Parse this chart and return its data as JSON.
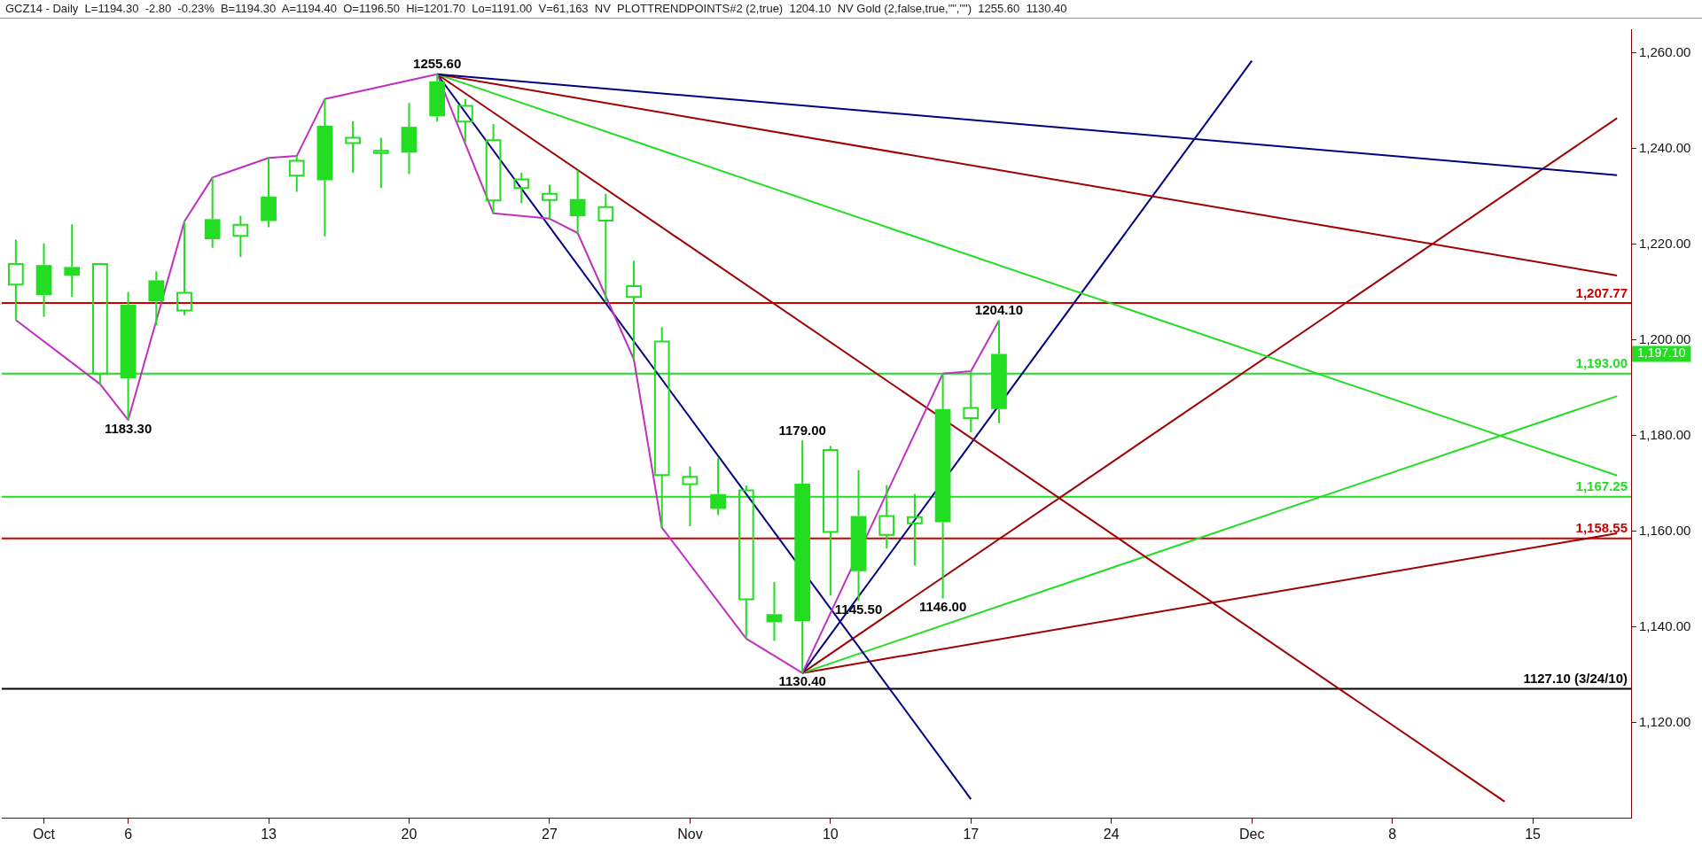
{
  "chart_data": {
    "type": "candlestick",
    "title": "GCZ14 - Daily  L=1194.30  -2.80  -0.23%  B=1194.30  A=1194.40  O=1196.50  Hi=1201.70  Lo=1191.00  V=61,163  NV  PLOTTRENDPOINTS#2 (2,true)  1204.10  NV Gold (2,false,true,\"\",\"\")  1255.60  1130.40",
    "categories": [
      null,
      "Oct",
      null,
      null,
      "6",
      null,
      null,
      null,
      null,
      "13",
      null,
      null,
      null,
      null,
      "20",
      null,
      null,
      null,
      null,
      "27",
      null,
      null,
      null,
      null,
      "Nov",
      null,
      null,
      null,
      null,
      "10",
      null,
      null,
      null,
      null,
      "17",
      null,
      null,
      null,
      null,
      "24",
      null,
      null,
      null,
      null,
      "Dec",
      null,
      null,
      null,
      null,
      "8",
      null,
      null,
      null,
      null,
      "15",
      null,
      null,
      null
    ],
    "color": "#22dd22",
    "ohlc": [
      [
        1215.9,
        1221.0,
        1204.2,
        1211.6
      ],
      [
        1209.4,
        1220.2,
        1204.9,
        1215.7
      ],
      [
        1213.5,
        1224.2,
        1209.0,
        1215.3
      ],
      [
        1215.9,
        1215.9,
        1190.8,
        1193.0
      ],
      [
        1192.0,
        1210.1,
        1183.3,
        1207.4
      ],
      [
        1208.1,
        1214.4,
        1203.1,
        1212.5
      ],
      [
        1209.9,
        1224.8,
        1205.2,
        1206.2
      ],
      [
        1221.1,
        1234.0,
        1219.3,
        1225.3
      ],
      [
        1224.1,
        1226.0,
        1217.4,
        1221.8
      ],
      [
        1224.9,
        1238.1,
        1223.6,
        1230.0
      ],
      [
        1237.5,
        1238.5,
        1231.0,
        1234.4
      ],
      [
        1233.4,
        1250.4,
        1221.7,
        1244.8
      ],
      [
        1242.3,
        1245.8,
        1235.0,
        1241.2
      ],
      [
        1239.6,
        1242.3,
        1231.8,
        1239.1
      ],
      [
        1239.2,
        1249.6,
        1234.7,
        1244.6
      ],
      [
        1246.8,
        1255.6,
        1245.7,
        1254.1
      ],
      [
        1249.0,
        1250.4,
        1241.4,
        1245.7
      ],
      [
        1241.8,
        1245.2,
        1226.5,
        1229.2
      ],
      [
        1233.6,
        1235.0,
        1228.6,
        1231.8
      ],
      [
        1230.6,
        1232.5,
        1225.4,
        1229.3
      ],
      [
        1225.9,
        1235.5,
        1222.4,
        1229.5
      ],
      [
        1227.8,
        1230.6,
        1207.9,
        1225.0
      ],
      [
        1211.3,
        1216.6,
        1196.0,
        1209.0
      ],
      [
        1199.7,
        1202.7,
        1160.8,
        1171.8
      ],
      [
        1171.4,
        1173.6,
        1161.1,
        1169.9
      ],
      [
        1164.7,
        1175.3,
        1163.4,
        1167.8
      ],
      [
        1168.6,
        1169.6,
        1137.6,
        1145.8
      ],
      [
        1141.0,
        1149.4,
        1137.1,
        1142.7
      ],
      [
        1141.2,
        1179.0,
        1130.4,
        1170.0
      ],
      [
        1177.0,
        1177.9,
        1146.6,
        1159.9
      ],
      [
        1151.7,
        1172.8,
        1145.5,
        1163.2
      ],
      [
        1163.2,
        1169.7,
        1156.4,
        1159.3
      ],
      [
        1163.0,
        1167.8,
        1152.9,
        1161.7
      ],
      [
        1161.9,
        1193.0,
        1146.0,
        1185.6
      ],
      [
        1185.8,
        1193.5,
        1180.7,
        1183.7
      ],
      [
        1185.6,
        1204.1,
        1182.6,
        1197.1
      ],
      null,
      null,
      null,
      null,
      null,
      null,
      null,
      null,
      null,
      null,
      null,
      null,
      null,
      null,
      null,
      null,
      null,
      null,
      null,
      null,
      null,
      null
    ],
    "series": [
      {
        "type": "line",
        "color": "#c030c0",
        "values": [
          1204.2,
          null,
          null,
          1190.8,
          1183.3,
          null,
          1224.8,
          1234.0,
          null,
          1238.1,
          1238.5,
          1250.4,
          null,
          null,
          null,
          1255.6,
          null,
          1226.5,
          null,
          1225.4,
          1222.4,
          null,
          1196.0,
          1160.8,
          null,
          null,
          1137.6,
          null,
          1130.4,
          null,
          null,
          null,
          null,
          1193.0,
          1193.5,
          1204.1,
          null,
          null,
          null,
          null,
          null,
          null,
          null,
          null,
          null,
          null,
          null,
          null,
          null,
          null,
          null,
          null,
          null,
          null,
          null,
          null,
          null,
          null
        ]
      },
      {
        "type": "line",
        "color": "#000080",
        "values": [
          null,
          null,
          null,
          null,
          null,
          null,
          null,
          null,
          null,
          null,
          null,
          null,
          null,
          null,
          null,
          1255.6,
          null,
          null,
          null,
          null,
          null,
          null,
          null,
          null,
          null,
          null,
          null,
          null,
          null,
          null,
          null,
          null,
          null,
          null,
          null,
          null,
          null,
          null,
          null,
          null,
          null,
          null,
          null,
          null,
          null,
          null,
          null,
          null,
          null,
          null,
          null,
          null,
          null,
          null,
          null,
          null,
          null,
          1234.5
        ]
      },
      {
        "type": "line",
        "color": "#a00000",
        "values": [
          null,
          null,
          null,
          null,
          null,
          null,
          null,
          null,
          null,
          null,
          null,
          null,
          null,
          null,
          null,
          1255.6,
          null,
          null,
          null,
          null,
          null,
          null,
          null,
          null,
          null,
          null,
          null,
          null,
          null,
          null,
          null,
          null,
          null,
          null,
          null,
          null,
          null,
          null,
          null,
          null,
          null,
          null,
          null,
          null,
          null,
          null,
          null,
          null,
          null,
          null,
          null,
          null,
          null,
          null,
          null,
          null,
          null,
          1213.5
        ]
      },
      {
        "type": "line",
        "color": "#22dd22",
        "values": [
          null,
          null,
          null,
          null,
          null,
          null,
          null,
          null,
          null,
          null,
          null,
          null,
          null,
          null,
          null,
          1255.6,
          null,
          null,
          null,
          null,
          null,
          null,
          null,
          null,
          null,
          null,
          null,
          null,
          null,
          null,
          null,
          null,
          null,
          null,
          null,
          null,
          null,
          null,
          null,
          null,
          null,
          null,
          null,
          null,
          null,
          null,
          null,
          null,
          null,
          null,
          null,
          null,
          null,
          null,
          null,
          null,
          null,
          1171.7
        ]
      },
      {
        "type": "line",
        "color": "#a00000",
        "values": [
          null,
          null,
          null,
          null,
          null,
          null,
          null,
          null,
          null,
          null,
          null,
          null,
          null,
          null,
          null,
          1255.6,
          null,
          null,
          null,
          null,
          null,
          null,
          null,
          null,
          null,
          null,
          null,
          null,
          null,
          null,
          null,
          null,
          null,
          null,
          null,
          null,
          null,
          null,
          null,
          null,
          null,
          null,
          null,
          null,
          null,
          null,
          null,
          null,
          null,
          null,
          null,
          null,
          null,
          1103.5,
          null,
          null,
          null,
          null
        ]
      },
      {
        "type": "line",
        "color": "#000080",
        "values": [
          null,
          null,
          null,
          null,
          null,
          null,
          null,
          null,
          null,
          null,
          null,
          null,
          null,
          null,
          null,
          1255.6,
          null,
          null,
          null,
          null,
          null,
          null,
          null,
          null,
          null,
          null,
          null,
          null,
          null,
          null,
          null,
          null,
          null,
          null,
          1104.0,
          null,
          null,
          null,
          null,
          null,
          null,
          null,
          null,
          null,
          null,
          null,
          null,
          null,
          null,
          null,
          null,
          null,
          null,
          null,
          null,
          null,
          null,
          null
        ]
      },
      {
        "type": "line",
        "color": "#000080",
        "values": [
          null,
          null,
          null,
          null,
          null,
          null,
          null,
          null,
          null,
          null,
          null,
          null,
          null,
          null,
          null,
          null,
          null,
          null,
          null,
          null,
          null,
          null,
          null,
          null,
          null,
          null,
          null,
          null,
          1130.4,
          null,
          null,
          null,
          null,
          null,
          null,
          null,
          null,
          null,
          null,
          null,
          null,
          null,
          null,
          null,
          1258.4,
          null,
          null,
          null,
          null,
          null,
          null,
          null,
          null,
          null,
          null,
          null,
          null,
          null
        ]
      },
      {
        "type": "line",
        "color": "#a00000",
        "values": [
          null,
          null,
          null,
          null,
          null,
          null,
          null,
          null,
          null,
          null,
          null,
          null,
          null,
          null,
          null,
          null,
          null,
          null,
          null,
          null,
          null,
          null,
          null,
          null,
          null,
          null,
          null,
          null,
          1130.4,
          null,
          null,
          null,
          null,
          null,
          null,
          null,
          null,
          null,
          null,
          null,
          null,
          null,
          null,
          null,
          null,
          null,
          null,
          null,
          null,
          null,
          null,
          null,
          null,
          null,
          null,
          null,
          null,
          1246.4
        ]
      },
      {
        "type": "line",
        "color": "#22dd22",
        "values": [
          null,
          null,
          null,
          null,
          null,
          null,
          null,
          null,
          null,
          null,
          null,
          null,
          null,
          null,
          null,
          null,
          null,
          null,
          null,
          null,
          null,
          null,
          null,
          null,
          null,
          null,
          null,
          null,
          1130.4,
          null,
          null,
          null,
          null,
          null,
          null,
          null,
          null,
          null,
          null,
          null,
          null,
          null,
          null,
          null,
          null,
          null,
          null,
          null,
          null,
          null,
          null,
          null,
          null,
          null,
          null,
          null,
          null,
          1188.3
        ]
      },
      {
        "type": "line",
        "color": "#a00000",
        "values": [
          null,
          null,
          null,
          null,
          null,
          null,
          null,
          null,
          null,
          null,
          null,
          null,
          null,
          null,
          null,
          null,
          null,
          null,
          null,
          null,
          null,
          null,
          null,
          null,
          null,
          null,
          null,
          null,
          1130.4,
          null,
          null,
          null,
          null,
          null,
          null,
          null,
          null,
          null,
          null,
          null,
          null,
          null,
          null,
          null,
          null,
          null,
          null,
          null,
          null,
          null,
          null,
          null,
          null,
          null,
          null,
          null,
          null,
          1159.6
        ]
      }
    ],
    "ref_lines": [
      {
        "axis": "y",
        "value": 1207.77,
        "label": "1,207.77",
        "color": "#cc0000"
      },
      {
        "axis": "y",
        "value": 1193.0,
        "label": "1,193.00",
        "color": "#22dd22"
      },
      {
        "axis": "y",
        "value": 1167.25,
        "label": "1,167.25",
        "color": "#22dd22"
      },
      {
        "axis": "y",
        "value": 1158.55,
        "label": "1,158.55",
        "color": "#cc0000"
      },
      {
        "axis": "y",
        "value": 1127.1,
        "label": "1127.10 (3/24/10)",
        "color": "#000000"
      }
    ],
    "annotations": [
      {
        "text": "1255.60",
        "y": 1255.6
      },
      {
        "text": "1183.30",
        "y": 1183.3
      },
      {
        "text": "1179.00",
        "y": 1179.0
      },
      {
        "text": "1130.40",
        "y": 1130.4
      },
      {
        "text": "1145.50",
        "y": 1145.5
      },
      {
        "text": "1146.00",
        "y": 1146.0
      },
      {
        "text": "1204.10",
        "y": 1204.1
      },
      "1,197.10"
    ],
    "ylim": [
      1100,
      1265
    ],
    "yticks": [
      {
        "value": 1120,
        "label": "1,120.00"
      },
      {
        "value": 1140,
        "label": "1,140.00"
      },
      {
        "value": 1160,
        "label": "1,160.00"
      },
      {
        "value": 1180,
        "label": "1,180.00"
      },
      {
        "value": 1200,
        "label": "1,200.00"
      },
      {
        "value": 1220,
        "label": "1,220.00"
      },
      {
        "value": 1240,
        "label": "1,240.00"
      },
      {
        "value": 1260,
        "label": "1,260.00"
      }
    ],
    "grid": false,
    "legend": false
  }
}
